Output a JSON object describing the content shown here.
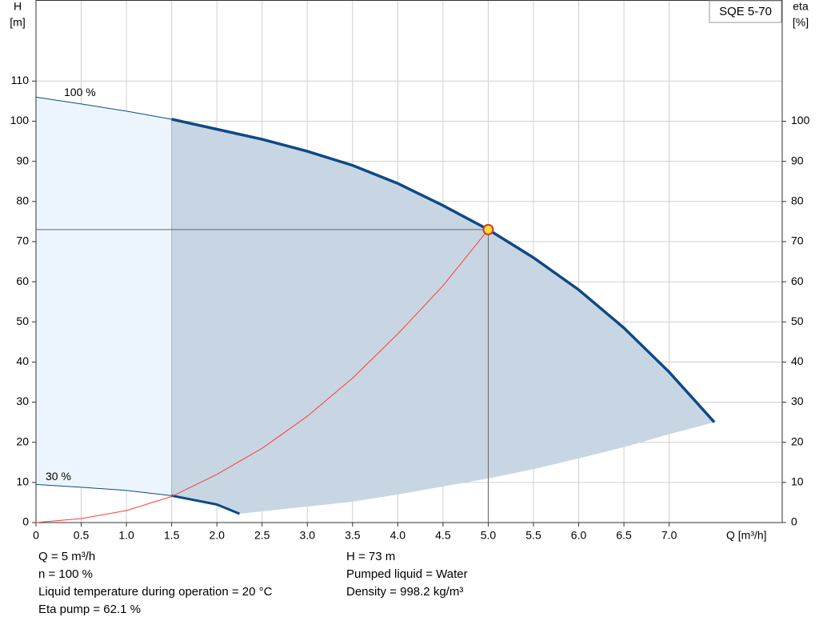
{
  "chart_data": {
    "type": "line",
    "title": "SQE 5-70",
    "y_label": [
      "H",
      "[m]"
    ],
    "y2_label": [
      "eta",
      "[%]"
    ],
    "x_label": "Q [m³/h]",
    "xlim": [
      0,
      8.25
    ],
    "xticks": [
      0,
      0.5,
      {
        "value": 1,
        "label": "1.0"
      },
      1.5,
      {
        "value": 2,
        "label": "2.0"
      },
      2.5,
      {
        "value": 3,
        "label": "3.0"
      },
      3.5,
      {
        "value": 4,
        "label": "4.0"
      },
      4.5,
      {
        "value": 5,
        "label": "5.0"
      },
      5.5,
      {
        "value": 6,
        "label": "6.0"
      },
      6.5,
      {
        "value": 7,
        "label": "7.0"
      }
    ],
    "ylim": [
      0,
      130
    ],
    "yticks": [
      0,
      10,
      20,
      30,
      40,
      50,
      60,
      70,
      80,
      90,
      100,
      110
    ],
    "y2lim": [
      0,
      130
    ],
    "y2ticks": [
      0,
      10,
      20,
      30,
      40,
      50,
      60,
      70,
      80,
      90,
      100
    ],
    "grid": true,
    "min_flow": 1.5,
    "series": [
      {
        "name": "100 %",
        "color": "#0d4a85",
        "x": [
          0,
          0.5,
          1,
          1.5,
          2,
          2.5,
          3,
          3.5,
          4,
          4.5,
          5,
          5.5,
          6,
          6.5,
          7,
          7.5
        ],
        "values": [
          106,
          104.3,
          102.5,
          100.5,
          98,
          95.5,
          92.5,
          89,
          84.5,
          79,
          73,
          66,
          58,
          48.5,
          37.5,
          25
        ]
      },
      {
        "name": "30 %",
        "color": "#0d4a85",
        "x": [
          0,
          0.5,
          1,
          1.5,
          2,
          2.25
        ],
        "values": [
          9.5,
          8.8,
          8,
          6.7,
          4.5,
          2.2
        ]
      },
      {
        "color": "#c8d6e3",
        "x": [
          2.25,
          3,
          3.5,
          4,
          4.5,
          5,
          5.5,
          6,
          6.5,
          7,
          7.5
        ],
        "values": [
          2.2,
          4,
          5.2,
          7,
          9,
          11,
          13.3,
          16,
          18.8,
          22,
          25
        ]
      },
      {
        "color": "#ff3b3b",
        "x": [
          0,
          0.5,
          1,
          1.5,
          2,
          2.5,
          3,
          3.5,
          4,
          4.5,
          5
        ],
        "values": [
          0,
          1,
          3,
          6.5,
          12,
          18.5,
          26.5,
          36,
          47,
          59,
          73
        ]
      }
    ],
    "operating_point": {
      "x": 5,
      "y": 73
    },
    "notes_left": [
      "Q = 5 m³/h",
      "n = 100 %",
      "Liquid temperature during operation = 20 °C",
      "Eta pump = 62.1 %"
    ],
    "notes_right": [
      "H = 73 m",
      "Pumped liquid = Water",
      "Density = 998.2 kg/m³"
    ]
  }
}
